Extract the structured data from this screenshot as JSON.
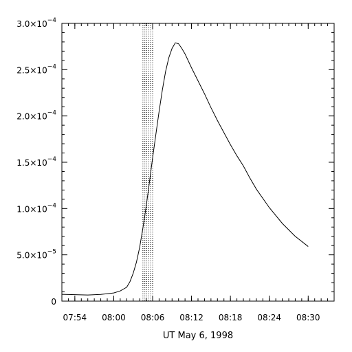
{
  "chart_data": {
    "type": "line",
    "title": "",
    "xlabel": "UT May 6, 1998",
    "ylabel": "",
    "grid": false,
    "xlim": [
      "07:52",
      "08:34"
    ],
    "ylim": [
      0,
      0.0003
    ],
    "x_ticks": [
      {
        "time": "07:54",
        "label": "07:54"
      },
      {
        "time": "08:00",
        "label": "08:00"
      },
      {
        "time": "08:06",
        "label": "08:06"
      },
      {
        "time": "08:12",
        "label": "08:12"
      },
      {
        "time": "08:18",
        "label": "08:18"
      },
      {
        "time": "08:24",
        "label": "08:24"
      },
      {
        "time": "08:30",
        "label": "08:30"
      }
    ],
    "y_ticks": [
      {
        "value": 0,
        "mantissa": "0",
        "exponent": ""
      },
      {
        "value": 5e-05,
        "mantissa": "5.0×10",
        "exponent": "−5"
      },
      {
        "value": 0.0001,
        "mantissa": "1.0×10",
        "exponent": "−4"
      },
      {
        "value": 0.00015,
        "mantissa": "1.5×10",
        "exponent": "−4"
      },
      {
        "value": 0.0002,
        "mantissa": "2.0×10",
        "exponent": "−4"
      },
      {
        "value": 0.00025,
        "mantissa": "2.5×10",
        "exponent": "−4"
      },
      {
        "value": 0.0003,
        "mantissa": "3.0×10",
        "exponent": "−4"
      }
    ],
    "shaded_interval": {
      "start": "08:04:30",
      "end": "08:06:00",
      "style": "dotted"
    },
    "series": [
      {
        "x": [
          "07:52",
          "07:54",
          "07:56",
          "07:58",
          "08:00",
          "08:01",
          "08:02",
          "08:02:30",
          "08:03",
          "08:03:30",
          "08:04",
          "08:04:30",
          "08:05",
          "08:05:30",
          "08:06",
          "08:06:30",
          "08:07",
          "08:07:30",
          "08:08",
          "08:08:30",
          "08:09",
          "08:09:30",
          "08:10",
          "08:10:30",
          "08:11",
          "08:12",
          "08:13",
          "08:14",
          "08:15",
          "08:16",
          "08:17",
          "08:18",
          "08:19",
          "08:20",
          "08:21",
          "08:22",
          "08:24",
          "08:26",
          "08:28",
          "08:30"
        ],
        "y": [
          7.3e-06,
          7e-06,
          6.6e-06,
          7.2e-06,
          8.8e-06,
          1.1e-05,
          1.5e-05,
          2.1e-05,
          3e-05,
          4.2e-05,
          5.8e-05,
          7.9e-05,
          0.000102,
          0.000128,
          0.000155,
          0.00018,
          0.000205,
          0.000228,
          0.000248,
          0.000263,
          0.000273,
          0.000279,
          0.000278,
          0.000273,
          0.000267,
          0.000252,
          0.000238,
          0.000224,
          0.000209,
          0.000195,
          0.000182,
          0.000169,
          0.000157,
          0.000146,
          0.000133,
          0.000121,
          0.000101,
          8.4e-05,
          7e-05,
          5.9e-05
        ]
      }
    ]
  }
}
